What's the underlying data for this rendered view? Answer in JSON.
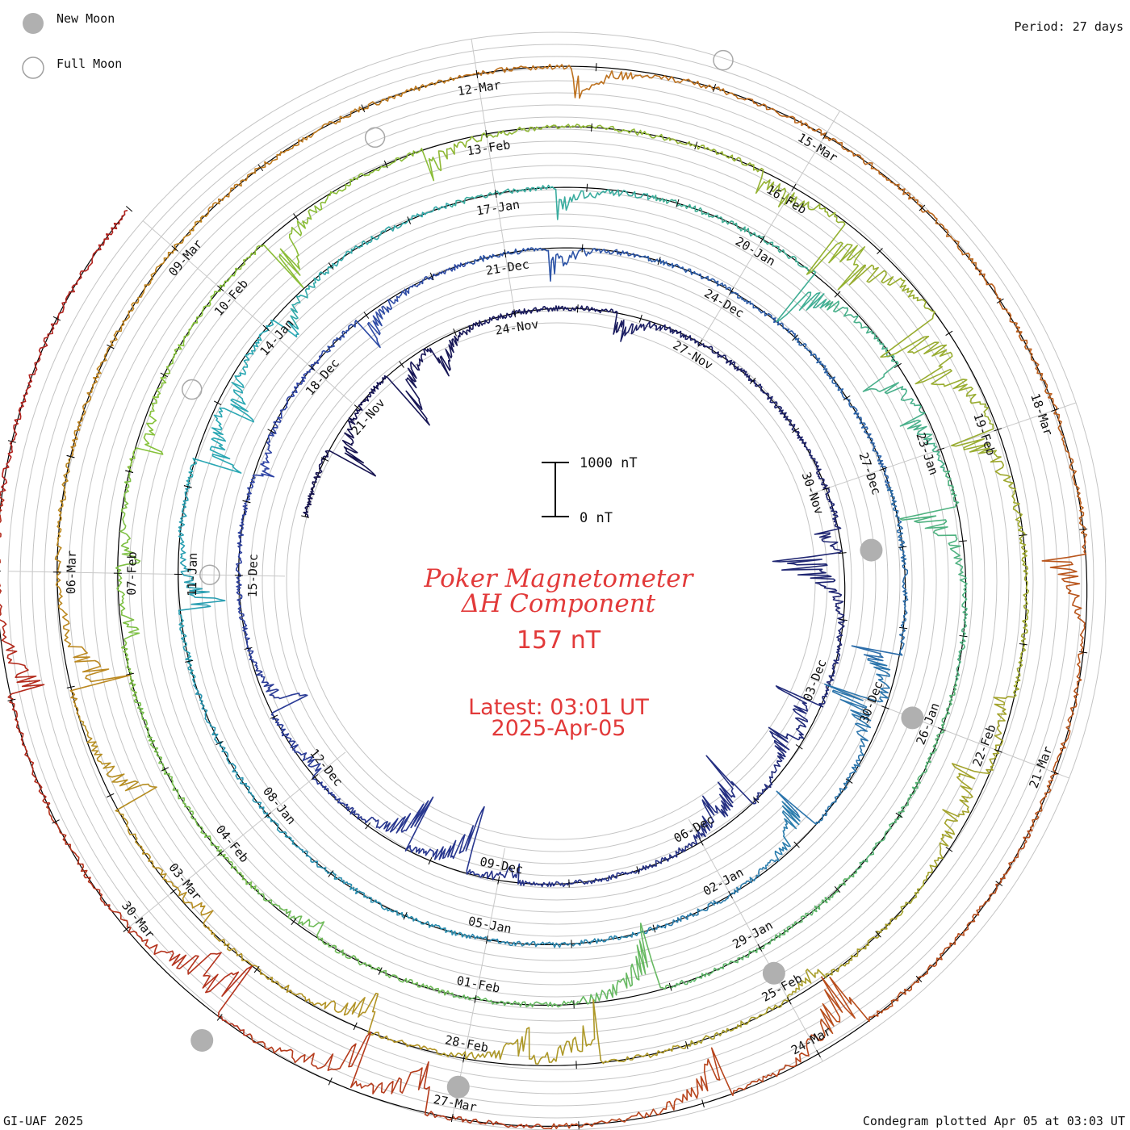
{
  "header": {
    "legend_new_moon": "New Moon",
    "legend_full_moon": "Full Moon",
    "period": "Period: 27 days"
  },
  "footer": {
    "credit": "GI-UAF 2025",
    "plotted": "Condegram plotted Apr 05 at 03:03 UT"
  },
  "chart_data": {
    "type": "line",
    "layout": "polar-spiral condegram",
    "title": "Poker Magnetometer",
    "subtitle": "ΔH Component",
    "current_value": "157 nT",
    "latest_line1": "Latest: 03:01 UT",
    "latest_line2": "2025-Apr-05",
    "scale_bar": {
      "top_label": "1000 nT",
      "bottom_label": "0 nT"
    },
    "period_days": 27,
    "grid": true,
    "date_labels": [
      [
        "21-Nov",
        "24-Nov",
        "27-Nov",
        "30-Nov",
        "03-Dec",
        "06-Dec",
        "09-Dec",
        "12-Dec",
        "15-Dec"
      ],
      [
        "18-Dec",
        "21-Dec",
        "24-Dec",
        "27-Dec",
        "30-Dec",
        "02-Jan",
        "05-Jan",
        "08-Jan",
        "11-Jan"
      ],
      [
        "14-Jan",
        "17-Jan",
        "20-Jan",
        "23-Jan",
        "26-Jan",
        "29-Jan",
        "01-Feb",
        "04-Feb",
        "07-Feb"
      ],
      [
        "10-Feb",
        "13-Feb",
        "16-Feb",
        "19-Feb",
        "22-Feb",
        "25-Feb",
        "28-Feb",
        "03-Mar",
        "06-Mar"
      ],
      [
        "09-Mar",
        "12-Mar",
        "15-Mar",
        "18-Mar",
        "21-Mar",
        "24-Mar",
        "27-Mar",
        "30-Mar"
      ]
    ],
    "series": [
      {
        "start": "2024-11-19",
        "end": "2024-12-16",
        "color": "#15124f"
      },
      {
        "start": "2024-12-16",
        "end": "2025-01-12",
        "color": "#2e43a4"
      },
      {
        "start": "2025-01-12",
        "end": "2025-02-08",
        "color": "#2aa7b3"
      },
      {
        "start": "2025-02-08",
        "end": "2025-03-07",
        "color": "#86c23a"
      },
      {
        "start": "2025-03-07",
        "end": "2025-04-05",
        "color": "#c0831e"
      }
    ],
    "moon_phases": {
      "new_moon": [
        "2024-12-01",
        "2024-12-30",
        "2025-01-29",
        "2025-02-28",
        "2025-03-29"
      ],
      "full_moon": [
        "2024-12-15",
        "2025-01-13",
        "2025-02-12",
        "2025-03-14"
      ]
    }
  }
}
